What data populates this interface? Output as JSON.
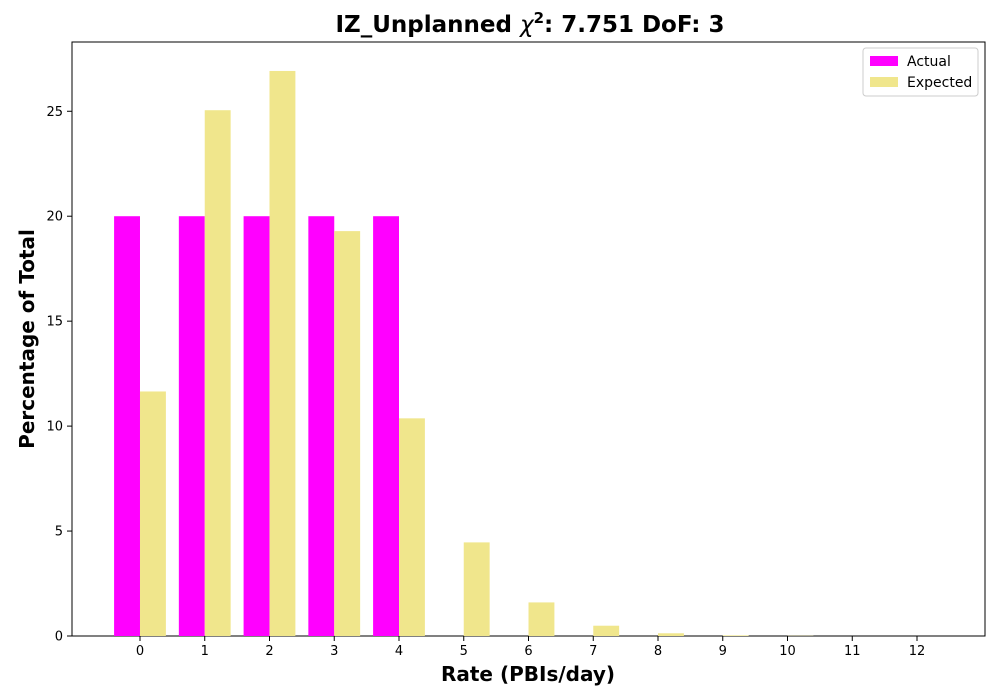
{
  "chart_data": {
    "type": "bar",
    "title": "IZ_Unplanned χ²: 7.751 DoF: 3",
    "title_parts": {
      "prefix": "IZ_Unplanned ",
      "chi_symbol": "χ",
      "superscript": "2",
      "suffix": ": 7.751 DoF: 3"
    },
    "xlabel": "Rate (PBIs/day)",
    "ylabel": "Percentage of Total",
    "categories": [
      "0",
      "1",
      "2",
      "3",
      "4",
      "5",
      "6",
      "7",
      "8",
      "9",
      "10",
      "11",
      "12"
    ],
    "series": [
      {
        "name": "Actual",
        "color": "#ff00ff",
        "values": [
          20,
          20,
          20,
          20,
          20,
          0,
          0,
          0,
          0,
          0,
          0,
          0,
          0
        ]
      },
      {
        "name": "Expected",
        "color": "#f0e68c",
        "values": [
          11.65,
          25.05,
          26.92,
          19.29,
          10.37,
          4.46,
          1.6,
          0.49,
          0.13,
          0.03,
          0.01,
          0.0,
          0.0
        ]
      }
    ],
    "ylim": [
      0,
      28.3
    ],
    "yticks": [
      "0",
      "5",
      "10",
      "15",
      "20",
      "25"
    ],
    "grid": false,
    "legend_position": "top-right"
  }
}
